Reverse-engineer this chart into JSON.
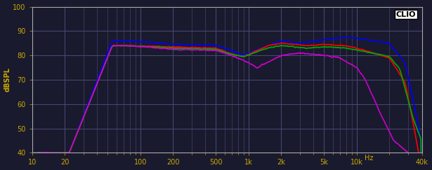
{
  "title": "",
  "ylabel": "dBSPL",
  "xlim": [
    10,
    40000
  ],
  "ylim": [
    40,
    100
  ],
  "yticks": [
    40,
    50,
    60,
    70,
    80,
    90,
    100
  ],
  "background_color": "#1a1a2e",
  "plot_bg_color": "#1a1a2e",
  "grid_color": "#4a4a7a",
  "clio_label": "CLIO",
  "colors": {
    "0deg": "#0000ff",
    "15deg": "#ff0000",
    "30deg": "#00aa00",
    "45deg": "#cc00cc"
  },
  "line_width": 1.2,
  "major_xticks": [
    10,
    20,
    100,
    200,
    500,
    1000,
    2000,
    5000,
    10000,
    40000
  ],
  "minor_xticks": [
    30,
    40,
    50,
    60,
    70,
    80,
    90,
    300,
    400,
    600,
    700,
    800,
    900,
    3000,
    4000,
    6000,
    7000,
    8000,
    9000,
    20000,
    30000
  ],
  "xtick_labels": {
    "10": "10",
    "20": "20",
    "100": "100",
    "200": "200",
    "500": "500",
    "1000": "1k",
    "2000": "2k",
    "5000": "5k",
    "10000": "10k",
    "40000": "40k"
  }
}
